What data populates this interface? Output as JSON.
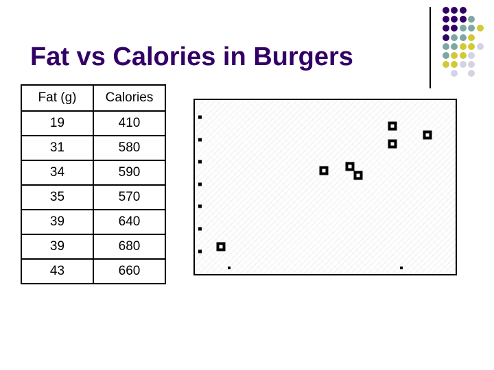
{
  "slide": {
    "title": "Fat vs Calories in Burgers",
    "title_color": "#330066",
    "background": "#ffffff"
  },
  "table": {
    "headers": [
      "Fat (g)",
      "Calories"
    ],
    "rows": [
      [
        "19",
        "410"
      ],
      [
        "31",
        "580"
      ],
      [
        "34",
        "590"
      ],
      [
        "35",
        "570"
      ],
      [
        "39",
        "640"
      ],
      [
        "39",
        "680"
      ],
      [
        "43",
        "660"
      ]
    ]
  },
  "chart_data": {
    "type": "scatter",
    "title": "",
    "xlabel": "",
    "ylabel": "",
    "points": [
      {
        "x": 19,
        "y": 410
      },
      {
        "x": 31,
        "y": 580
      },
      {
        "x": 34,
        "y": 590
      },
      {
        "x": 35,
        "y": 570
      },
      {
        "x": 39,
        "y": 640
      },
      {
        "x": 39,
        "y": 680
      },
      {
        "x": 43,
        "y": 660
      }
    ],
    "xlim": [
      16,
      46.3
    ],
    "ylim": [
      349,
      738
    ],
    "x_tick_values": [
      20,
      40
    ],
    "y_tick_values": [
      700,
      650,
      600,
      550,
      500,
      450,
      400
    ],
    "grid": false,
    "legend": false,
    "marker_style": "hollow-square",
    "marker_color": "#000000",
    "plot_border_color": "#000000"
  },
  "decoration": {
    "dot_grid": {
      "pattern": [
        "PPP..",
        "PPPT.",
        "PPTTY",
        "PTTY.",
        "TTYYL",
        "TYYL.",
        "YYLL.",
        ".L.L."
      ],
      "colors": {
        "P": "#330066",
        "T": "#7DA7A2",
        "Y": "#D1C935",
        "L": "#D3D3E5"
      }
    },
    "divider_color": "#000000"
  }
}
